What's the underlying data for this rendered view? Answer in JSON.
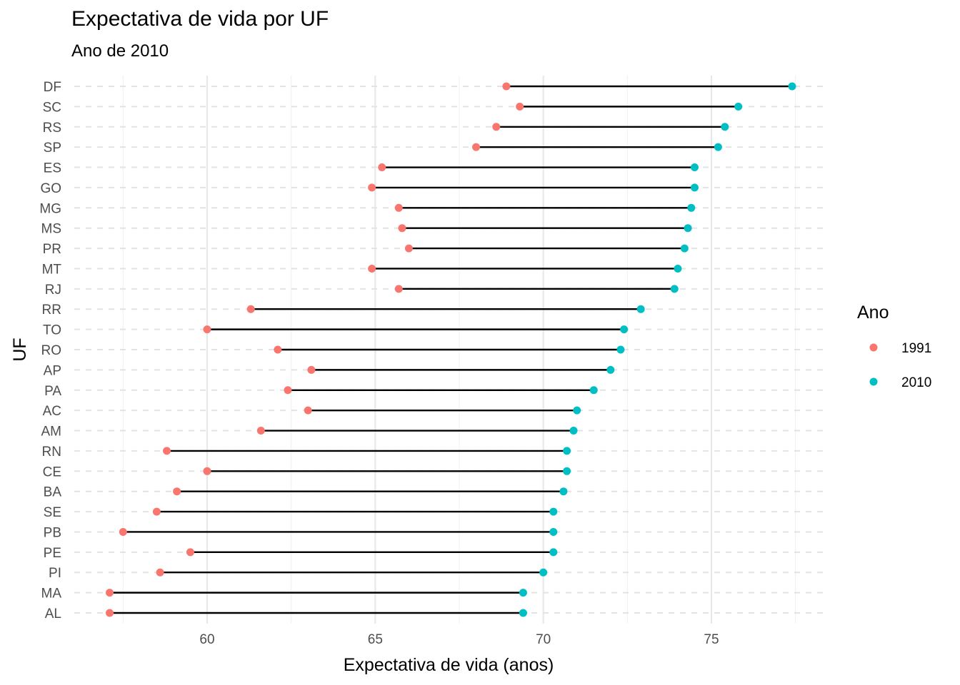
{
  "chart_data": {
    "type": "scatter",
    "variant": "dumbbell",
    "title": "Expectativa de vida por UF",
    "subtitle": "Ano de 2010",
    "xlabel": "Expectativa de vida (anos)",
    "ylabel": "UF",
    "xlim": [
      56.8,
      78.0
    ],
    "xticks": [
      60,
      65,
      70,
      75
    ],
    "grid": true,
    "legend": {
      "title": "Ano",
      "position": "right"
    },
    "categories": [
      "DF",
      "SC",
      "RS",
      "SP",
      "ES",
      "GO",
      "MG",
      "MS",
      "PR",
      "MT",
      "RJ",
      "RR",
      "TO",
      "RO",
      "AP",
      "PA",
      "AC",
      "AM",
      "RN",
      "CE",
      "BA",
      "SE",
      "PB",
      "PE",
      "PI",
      "MA",
      "AL"
    ],
    "series": [
      {
        "name": "1991",
        "color": "#F8766D",
        "values": [
          68.9,
          69.3,
          68.6,
          68.0,
          65.2,
          64.9,
          65.7,
          65.8,
          66.0,
          64.9,
          65.7,
          61.3,
          60.0,
          62.1,
          63.1,
          62.4,
          63.0,
          61.6,
          58.8,
          60.0,
          59.1,
          58.5,
          57.5,
          59.5,
          58.6,
          57.1,
          57.1
        ]
      },
      {
        "name": "2010",
        "color": "#00BFC4",
        "values": [
          77.4,
          75.8,
          75.4,
          75.2,
          74.5,
          74.5,
          74.4,
          74.3,
          74.2,
          74.0,
          73.9,
          72.9,
          72.4,
          72.3,
          72.0,
          71.5,
          71.0,
          70.9,
          70.7,
          70.7,
          70.6,
          70.3,
          70.3,
          70.3,
          70.0,
          69.4,
          69.4
        ]
      }
    ]
  }
}
